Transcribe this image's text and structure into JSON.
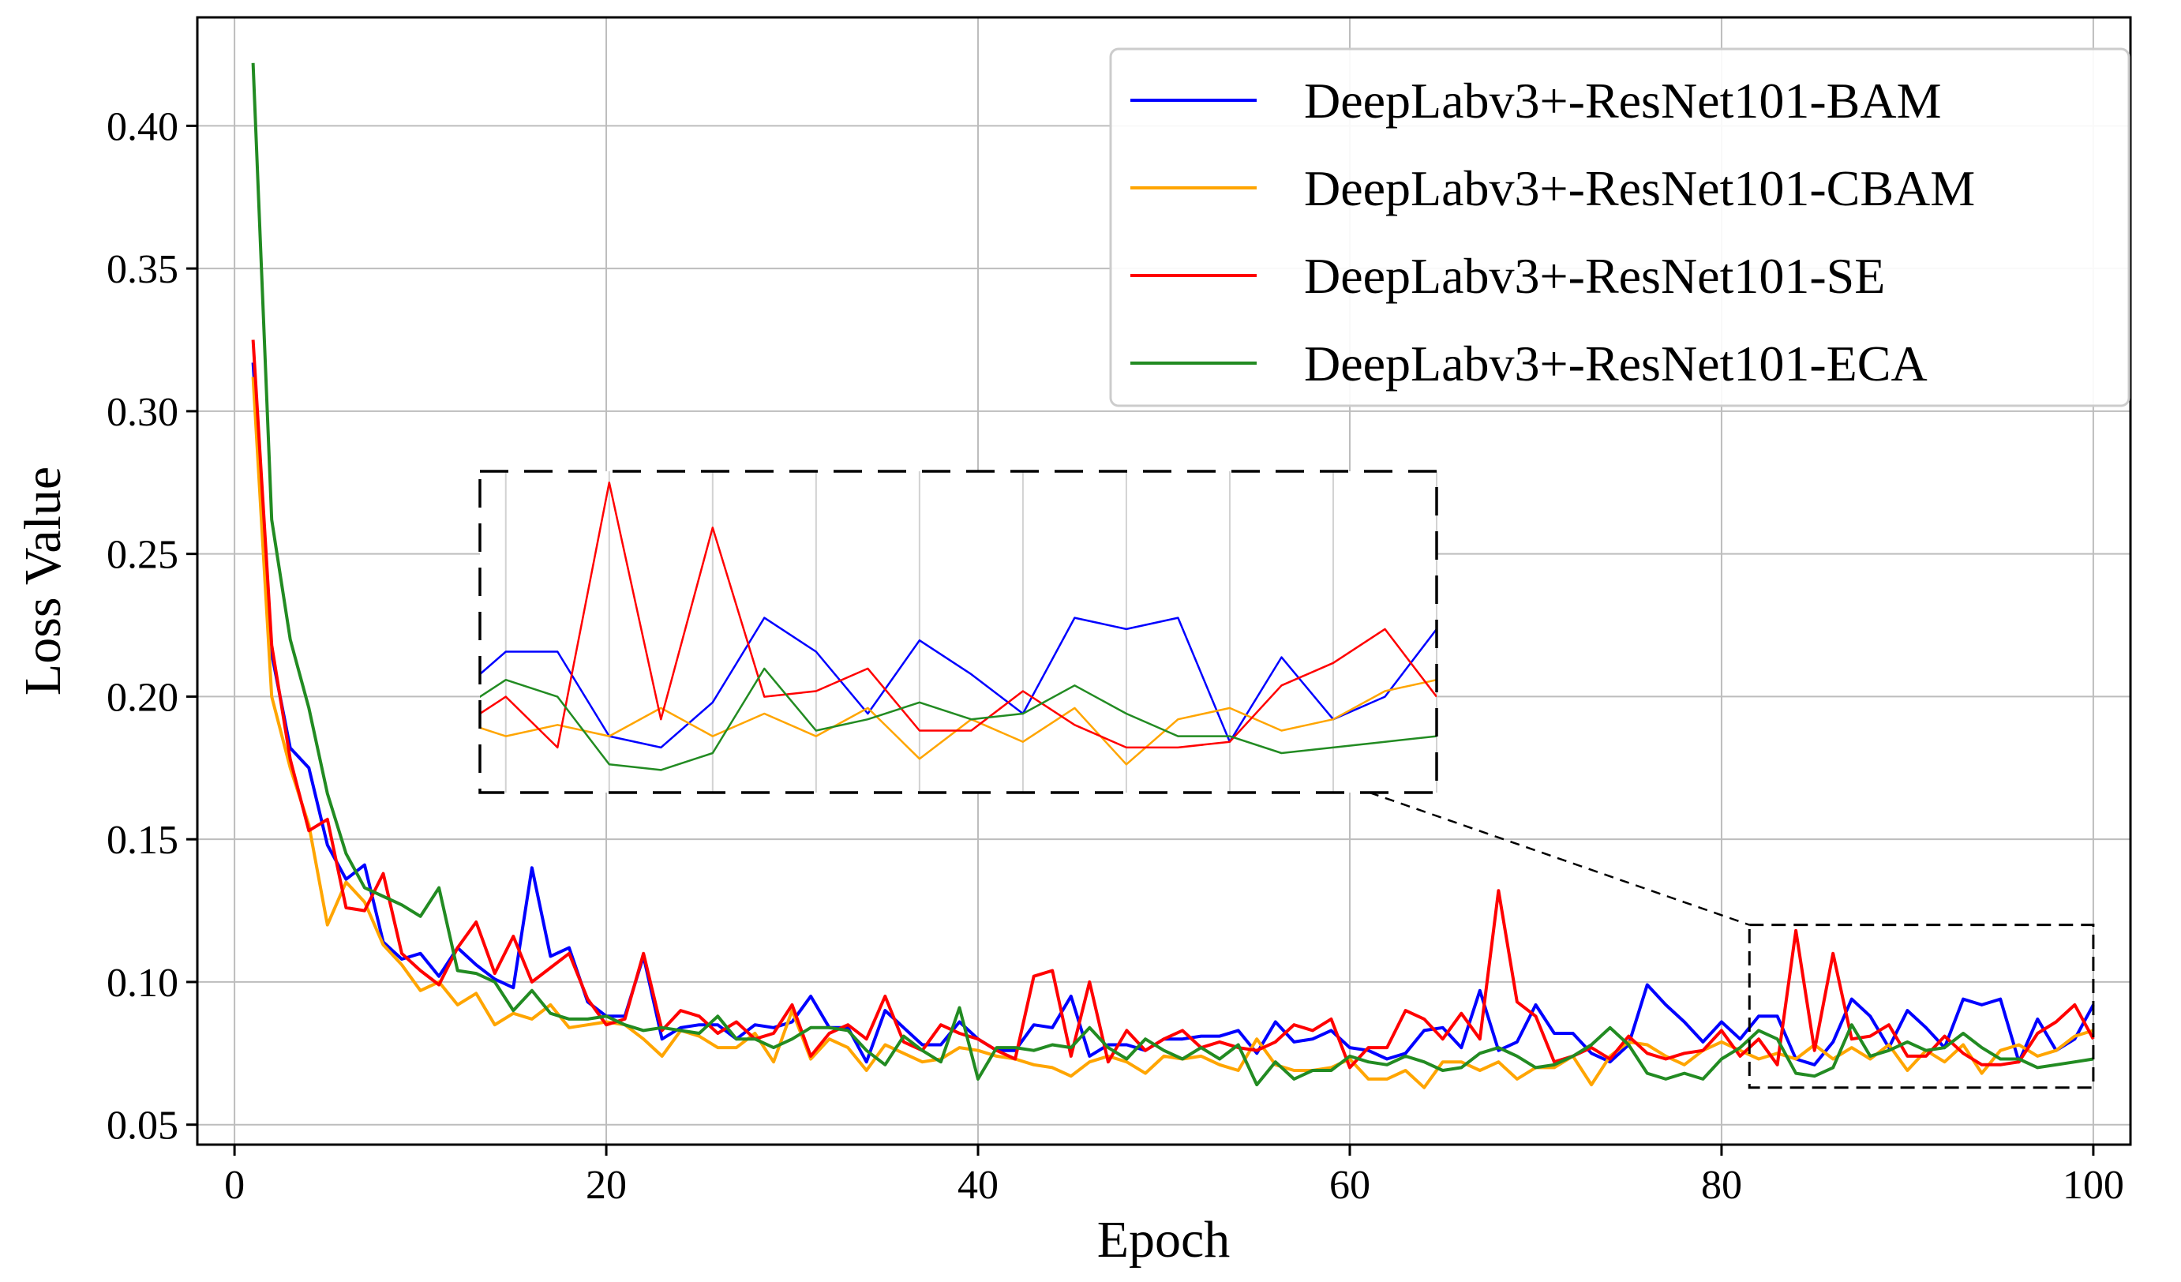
{
  "chart_data": {
    "type": "line",
    "title": "",
    "xlabel": "Epoch",
    "ylabel": "Loss Value",
    "xlim": [
      -2,
      102
    ],
    "ylim": [
      0.043,
      0.438
    ],
    "xticks": [
      0,
      20,
      40,
      60,
      80,
      100
    ],
    "xtick_labels": [
      "0",
      "20",
      "40",
      "60",
      "80",
      "100"
    ],
    "yticks": [
      0.05,
      0.1,
      0.15,
      0.2,
      0.25,
      0.3,
      0.35,
      0.4
    ],
    "ytick_labels": [
      "0.05",
      "0.10",
      "0.15",
      "0.20",
      "0.25",
      "0.30",
      "0.35",
      "0.40"
    ],
    "grid": true,
    "legend_position": "top-right",
    "series": [
      {
        "name": "DeepLabv3+-ResNet101-BAM",
        "color": "#0000ff",
        "values": [
          0.317,
          0.215,
          0.182,
          0.175,
          0.148,
          0.136,
          0.141,
          0.114,
          0.108,
          0.11,
          0.102,
          0.112,
          0.106,
          0.101,
          0.098,
          0.14,
          0.109,
          0.112,
          0.093,
          0.088,
          0.088,
          0.109,
          0.08,
          0.084,
          0.085,
          0.085,
          0.08,
          0.085,
          0.084,
          0.086,
          0.095,
          0.084,
          0.084,
          0.072,
          0.09,
          0.084,
          0.078,
          0.078,
          0.086,
          0.08,
          0.076,
          0.076,
          0.085,
          0.084,
          0.095,
          0.074,
          0.078,
          0.078,
          0.076,
          0.08,
          0.08,
          0.081,
          0.081,
          0.083,
          0.075,
          0.086,
          0.079,
          0.08,
          0.083,
          0.077,
          0.076,
          0.073,
          0.075,
          0.083,
          0.084,
          0.077,
          0.097,
          0.076,
          0.079,
          0.092,
          0.082,
          0.082,
          0.075,
          0.072,
          0.078,
          0.099,
          0.092,
          0.086,
          0.079,
          0.086,
          0.08,
          0.088,
          0.088,
          0.073,
          0.071,
          0.079,
          0.094,
          0.088,
          0.077,
          0.09,
          0.084,
          0.077,
          0.094,
          0.092,
          0.094,
          0.072,
          0.087,
          0.076,
          0.08,
          0.092
        ]
      },
      {
        "name": "DeepLabv3+-ResNet101-CBAM",
        "color": "#ffa500",
        "values": [
          0.312,
          0.2,
          0.175,
          0.155,
          0.12,
          0.135,
          0.128,
          0.113,
          0.106,
          0.097,
          0.1,
          0.092,
          0.096,
          0.085,
          0.089,
          0.087,
          0.092,
          0.084,
          0.085,
          0.086,
          0.085,
          0.08,
          0.074,
          0.083,
          0.081,
          0.077,
          0.077,
          0.082,
          0.072,
          0.09,
          0.073,
          0.08,
          0.077,
          0.069,
          0.078,
          0.075,
          0.072,
          0.073,
          0.077,
          0.076,
          0.074,
          0.073,
          0.071,
          0.07,
          0.067,
          0.072,
          0.074,
          0.072,
          0.068,
          0.074,
          0.073,
          0.074,
          0.071,
          0.069,
          0.08,
          0.071,
          0.069,
          0.069,
          0.07,
          0.073,
          0.066,
          0.066,
          0.069,
          0.063,
          0.072,
          0.072,
          0.069,
          0.072,
          0.066,
          0.07,
          0.07,
          0.074,
          0.064,
          0.074,
          0.079,
          0.078,
          0.074,
          0.071,
          0.076,
          0.079,
          0.076,
          0.073,
          0.075,
          0.073,
          0.078,
          0.073,
          0.077,
          0.073,
          0.078,
          0.069,
          0.076,
          0.072,
          0.078,
          0.068,
          0.076,
          0.078,
          0.074,
          0.076,
          0.081,
          0.083
        ]
      },
      {
        "name": "DeepLabv3+-ResNet101-SE",
        "color": "#ff0000",
        "values": [
          0.325,
          0.218,
          0.178,
          0.153,
          0.157,
          0.126,
          0.125,
          0.138,
          0.11,
          0.104,
          0.099,
          0.112,
          0.121,
          0.103,
          0.116,
          0.1,
          0.105,
          0.11,
          0.094,
          0.085,
          0.087,
          0.11,
          0.083,
          0.09,
          0.088,
          0.082,
          0.086,
          0.08,
          0.082,
          0.092,
          0.074,
          0.082,
          0.085,
          0.08,
          0.095,
          0.079,
          0.076,
          0.085,
          0.082,
          0.08,
          0.076,
          0.073,
          0.102,
          0.104,
          0.074,
          0.1,
          0.072,
          0.083,
          0.076,
          0.08,
          0.083,
          0.077,
          0.079,
          0.077,
          0.076,
          0.079,
          0.085,
          0.083,
          0.087,
          0.07,
          0.077,
          0.077,
          0.09,
          0.087,
          0.08,
          0.089,
          0.08,
          0.132,
          0.093,
          0.088,
          0.072,
          0.074,
          0.077,
          0.073,
          0.081,
          0.075,
          0.073,
          0.075,
          0.076,
          0.083,
          0.074,
          0.08,
          0.071,
          0.118,
          0.076,
          0.11,
          0.08,
          0.081,
          0.085,
          0.074,
          0.074,
          0.081,
          0.075,
          0.071,
          0.071,
          0.072,
          0.082,
          0.086,
          0.092,
          0.08
        ]
      },
      {
        "name": "DeepLabv3+-ResNet101-ECA",
        "color": "#228b22",
        "values": [
          0.422,
          0.262,
          0.22,
          0.196,
          0.166,
          0.145,
          0.133,
          0.13,
          0.127,
          0.123,
          0.133,
          0.104,
          0.103,
          0.1,
          0.09,
          0.097,
          0.089,
          0.087,
          0.087,
          0.088,
          0.085,
          0.083,
          0.084,
          0.083,
          0.082,
          0.088,
          0.08,
          0.08,
          0.077,
          0.08,
          0.084,
          0.084,
          0.083,
          0.076,
          0.071,
          0.081,
          0.076,
          0.072,
          0.091,
          0.066,
          0.077,
          0.077,
          0.076,
          0.078,
          0.077,
          0.084,
          0.077,
          0.073,
          0.08,
          0.076,
          0.073,
          0.077,
          0.073,
          0.078,
          0.064,
          0.072,
          0.066,
          0.069,
          0.069,
          0.074,
          0.072,
          0.071,
          0.074,
          0.072,
          0.069,
          0.07,
          0.075,
          0.077,
          0.074,
          0.07,
          0.071,
          0.074,
          0.078,
          0.084,
          0.078,
          0.068,
          0.066,
          0.068,
          0.066,
          0.073,
          0.077,
          0.083,
          0.08,
          0.068,
          0.067,
          0.07,
          0.085,
          0.074,
          0.076,
          0.079,
          0.076,
          0.077,
          0.082,
          0.077,
          0.073,
          0.073,
          0.07,
          0.071,
          0.072,
          0.073
        ]
      }
    ],
    "inset": {
      "x_range": [
        81.5,
        100
      ],
      "y_range": [
        0.063,
        0.12
      ],
      "connector": "dashed line from inset box to zoomed region"
    }
  }
}
